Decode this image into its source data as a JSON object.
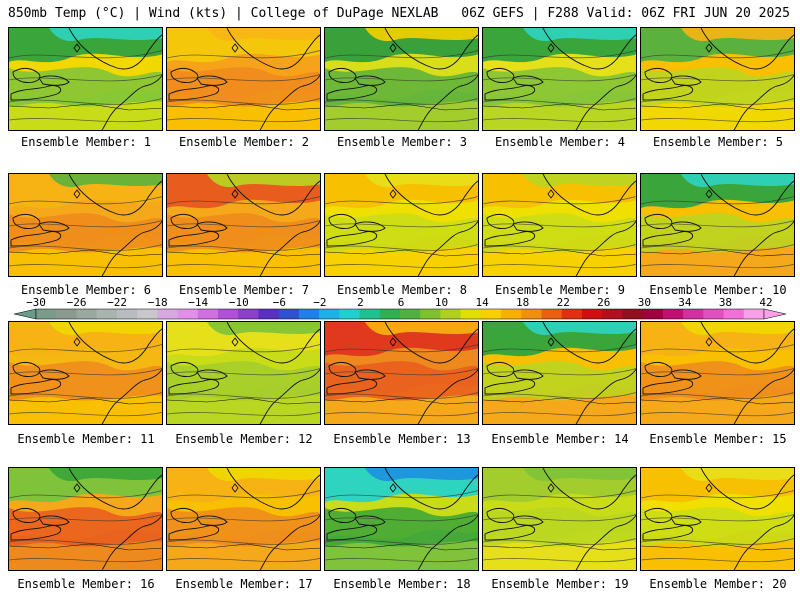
{
  "header": {
    "left": "850mb Temp (°C) | Wind (kts) | College of DuPage NEXLAB",
    "right": "06Z GEFS | F288 Valid: 06Z FRI JUN 20 2025"
  },
  "members": [
    {
      "label": "Ensemble Member: 1",
      "palette": [
        "#f0d800",
        "#c8dc18",
        "#7cc43a",
        "#3aa53a",
        "#2ed4c0"
      ]
    },
    {
      "label": "Ensemble Member: 2",
      "palette": [
        "#f7a21b",
        "#f8c000",
        "#ee8a1d",
        "#f5c70a",
        "#f8b513"
      ]
    },
    {
      "label": "Ensemble Member: 3",
      "palette": [
        "#d8df1a",
        "#a3cd2d",
        "#5ab13d",
        "#3aa03a",
        "#f7d000"
      ]
    },
    {
      "label": "Ensemble Member: 4",
      "palette": [
        "#e5e019",
        "#b8d622",
        "#7ec33a",
        "#3aa53a",
        "#2ed4c0"
      ]
    },
    {
      "label": "Ensemble Member: 5",
      "palette": [
        "#f8c000",
        "#f0d800",
        "#b8d622",
        "#5ab13d",
        "#f8b513"
      ]
    },
    {
      "label": "Ensemble Member: 6",
      "palette": [
        "#f5a81a",
        "#f8c000",
        "#ee8a1d",
        "#f7b313",
        "#5ab13d"
      ]
    },
    {
      "label": "Ensemble Member: 7",
      "palette": [
        "#f5a81a",
        "#f8c000",
        "#ee8a1d",
        "#e85c1e",
        "#b8d622"
      ]
    },
    {
      "label": "Ensemble Member: 8",
      "palette": [
        "#f0e000",
        "#f8d200",
        "#c8dc18",
        "#f7c000",
        "#e5e019"
      ]
    },
    {
      "label": "Ensemble Member: 9",
      "palette": [
        "#f0e000",
        "#f8d200",
        "#c8dc18",
        "#f7c000",
        "#b8d622"
      ]
    },
    {
      "label": "Ensemble Member: 10",
      "palette": [
        "#f8c000",
        "#f5a81a",
        "#b8d622",
        "#3aa53a",
        "#2ed4c0"
      ]
    },
    {
      "label": "Ensemble Member: 11",
      "palette": [
        "#f5b813",
        "#f8c000",
        "#ee8a1d",
        "#f7b313",
        "#f0d800"
      ]
    },
    {
      "label": "Ensemble Member: 12",
      "palette": [
        "#c8dc18",
        "#b8d622",
        "#a3cd2d",
        "#e5e019",
        "#7ec33a"
      ]
    },
    {
      "label": "Ensemble Member: 13",
      "palette": [
        "#ee8a1d",
        "#f5a81a",
        "#e85c1e",
        "#e03a1e",
        "#f8b513"
      ]
    },
    {
      "label": "Ensemble Member: 14",
      "palette": [
        "#f8c000",
        "#f5a81a",
        "#b8d622",
        "#3aa53a",
        "#2ed4c0"
      ]
    },
    {
      "label": "Ensemble Member: 15",
      "palette": [
        "#f8c000",
        "#f5a81a",
        "#ee8a1d",
        "#f7b313",
        "#f0d800"
      ]
    },
    {
      "label": "Ensemble Member: 16",
      "palette": [
        "#f5a81a",
        "#ee8a1d",
        "#e85c1e",
        "#7ec33a",
        "#3aa53a"
      ]
    },
    {
      "label": "Ensemble Member: 17",
      "palette": [
        "#f8c000",
        "#f5a81a",
        "#ee8a1d",
        "#f7b313",
        "#f0d800"
      ]
    },
    {
      "label": "Ensemble Member: 18",
      "palette": [
        "#c8dc18",
        "#7ec33a",
        "#3aa53a",
        "#2ed4c0",
        "#1e90e0"
      ]
    },
    {
      "label": "Ensemble Member: 19",
      "palette": [
        "#c8dc18",
        "#e5e019",
        "#b8d622",
        "#a3cd2d",
        "#7ec33a"
      ]
    },
    {
      "label": "Ensemble Member: 20",
      "palette": [
        "#f0e000",
        "#f8c000",
        "#c8dc18",
        "#f7c000",
        "#e5e019"
      ]
    }
  ],
  "colorbar": {
    "ticks": [
      "−30",
      "−26",
      "−22",
      "−18",
      "−14",
      "−10",
      "−6",
      "−2",
      "2",
      "6",
      "10",
      "14",
      "18",
      "22",
      "26",
      "30",
      "34",
      "38",
      "42"
    ],
    "colors": [
      "#7a9a8a",
      "#8a9a90",
      "#9aa8a0",
      "#aab4ae",
      "#b8bcc0",
      "#c8c8cc",
      "#d8a8e0",
      "#e090e8",
      "#d070e0",
      "#b050d8",
      "#8a40c8",
      "#5a30c0",
      "#3050d0",
      "#2080e8",
      "#20b0e8",
      "#20d0d0",
      "#20c090",
      "#30b050",
      "#50b040",
      "#80c030",
      "#b0d020",
      "#e0e000",
      "#f8d000",
      "#f8b000",
      "#f09010",
      "#e86010",
      "#e03010",
      "#d01010",
      "#b01020",
      "#901020",
      "#a00040",
      "#c01070",
      "#d030a0",
      "#e050c0",
      "#f070d8",
      "#f8a0e8"
    ]
  }
}
